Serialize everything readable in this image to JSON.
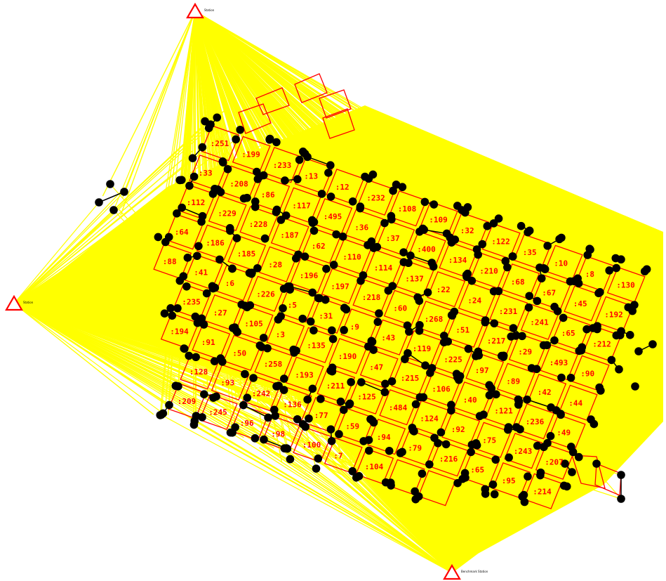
{
  "colors": {
    "background": "#ffffff",
    "survey_line": "#ffff00",
    "parcel": "#ff0000",
    "node": "#000000",
    "traverse": "#000000",
    "station": "#ff0000"
  },
  "icons": {
    "station": "triangle-station-icon",
    "node": "survey-point-icon"
  },
  "stations": [
    {
      "id": "station-top",
      "label": "Station"
    },
    {
      "id": "station-left",
      "label": "Station"
    },
    {
      "id": "station-bottom",
      "label": "Benchmark Station"
    }
  ],
  "parcel_labels": [
    ":251",
    ":199",
    ":233",
    ":13",
    ":12",
    ":232",
    ":108",
    ":109",
    ":32",
    ":122",
    ":35",
    ":10",
    ":8",
    ":130",
    ":33",
    ":208",
    ":86",
    ":117",
    ":495",
    ":36",
    ":37",
    ":400",
    ":134",
    ":210",
    ":68",
    ":67",
    ":45",
    ":192",
    ":112",
    ":229",
    ":228",
    ":187",
    ":62",
    ":110",
    ":114",
    ":137",
    ":22",
    ":24",
    ":231",
    ":241",
    ":65",
    ":212",
    ":64",
    ":186",
    ":185",
    ":28",
    ":196",
    ":197",
    ":218",
    ":60",
    ":268",
    ":51",
    ":217",
    ":29",
    ":493",
    ":90",
    ":88",
    ":41",
    ":6",
    ":226",
    ":5",
    ":31",
    ":9",
    ":43",
    ":119",
    ":225",
    ":97",
    ":89",
    ":42",
    ":44",
    ":235",
    ":27",
    ":105",
    ":3",
    ":135",
    ":190",
    ":47",
    ":215",
    ":106",
    ":40",
    ":121",
    ":236",
    ":49",
    ":194",
    ":91",
    ":50",
    ":258",
    ":193",
    ":211",
    ":125",
    ":484",
    ":124",
    ":92",
    ":75",
    ":243",
    ":207",
    ":128",
    ":93",
    ":242",
    ":136",
    ":77",
    ":59",
    ":94",
    ":79",
    ":216",
    ":65",
    ":95",
    ":214",
    ":209",
    ":245",
    ":96",
    ":98",
    ":100",
    ":7",
    ":104"
  ]
}
